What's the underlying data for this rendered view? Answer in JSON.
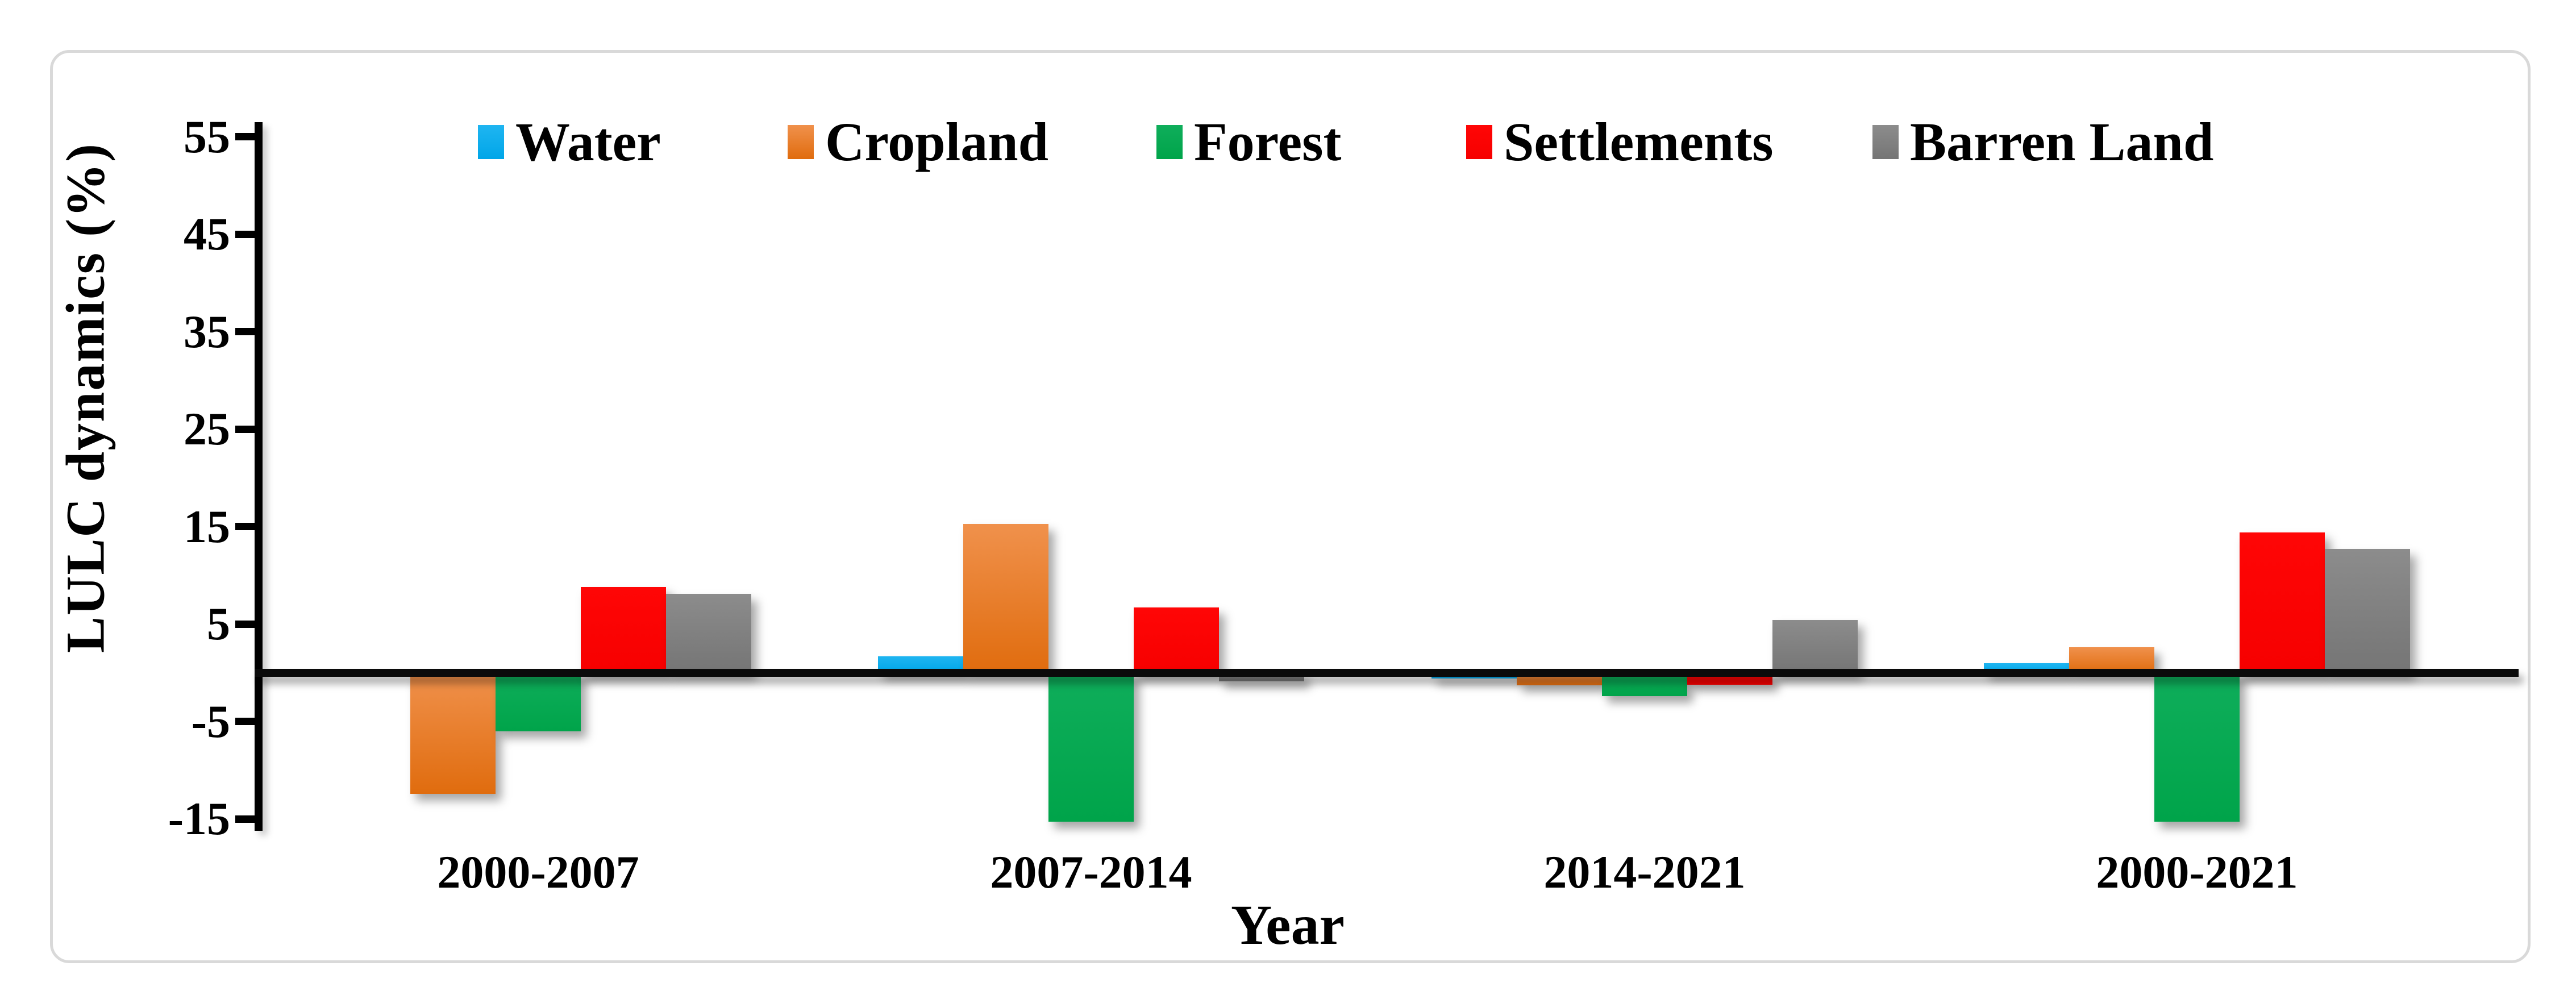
{
  "chart_data": {
    "type": "bar",
    "title": "",
    "categories": [
      "2000-2007",
      "2007-2014",
      "2014-2021",
      "2000-2021"
    ],
    "series": [
      {
        "name": "Water",
        "color": "#00AEEF",
        "fill_top": "#1FB5F1",
        "fill_bottom": "#00A6E8",
        "values": [
          0,
          1.7,
          -0.6,
          1.0
        ]
      },
      {
        "name": "Cropland",
        "color": "#ED7D31",
        "fill_top": "#F0914C",
        "fill_bottom": "#E06C0E",
        "values": [
          -12.4,
          15.3,
          -1.3,
          2.6
        ]
      },
      {
        "name": "Forest",
        "color": "#00AB50",
        "fill_top": "#0FAE5B",
        "fill_bottom": "#00A44A",
        "values": [
          -6.0,
          -15.3,
          -2.4,
          -15.3
        ]
      },
      {
        "name": "Settlements",
        "color": "#FF0000",
        "fill_top": "#FF0606",
        "fill_bottom": "#F60000",
        "values": [
          8.8,
          6.7,
          -1.2,
          14.4
        ]
      },
      {
        "name": "Barren Land",
        "color": "#7F7F7F",
        "fill_top": "#8C8C8C",
        "fill_bottom": "#757575",
        "values": [
          8.1,
          -0.9,
          5.4,
          12.7
        ]
      }
    ],
    "xlabel": "Year",
    "ylabel": "LULC dynamics (%)",
    "yticks": [
      55,
      45,
      35,
      25,
      15,
      5,
      -5,
      -15
    ],
    "ylim": [
      -16.5,
      56.5
    ],
    "legend_position": "top",
    "grid": false,
    "axis_color": "#000000",
    "border_color": "#d9d9d9"
  }
}
